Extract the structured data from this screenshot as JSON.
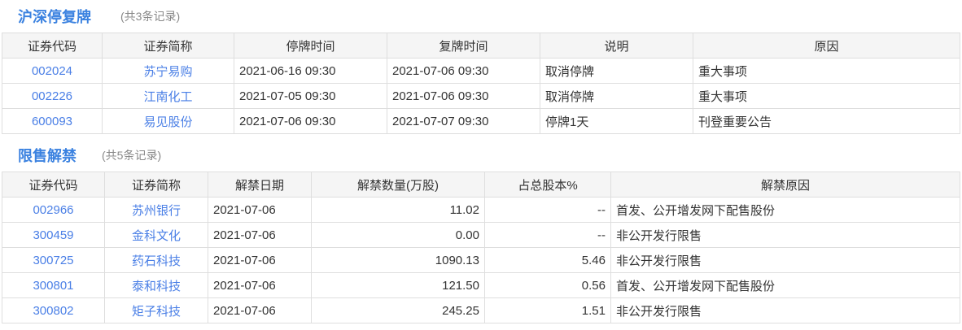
{
  "suspension": {
    "title": "沪深停复牌",
    "count": "(共3条记录)",
    "headers": [
      "证券代码",
      "证券简称",
      "停牌时间",
      "复牌时间",
      "说明",
      "原因"
    ],
    "rows": [
      {
        "code": "002024",
        "name": "苏宁易购",
        "halt": "2021-06-16 09:30",
        "resume": "2021-07-06 09:30",
        "note": "取消停牌",
        "reason": "重大事项"
      },
      {
        "code": "002226",
        "name": "江南化工",
        "halt": "2021-07-05 09:30",
        "resume": "2021-07-06 09:30",
        "note": "取消停牌",
        "reason": "重大事项"
      },
      {
        "code": "600093",
        "name": "易见股份",
        "halt": "2021-07-06 09:30",
        "resume": "2021-07-07 09:30",
        "note": "停牌1天",
        "reason": "刊登重要公告"
      }
    ]
  },
  "unlock": {
    "title": "限售解禁",
    "count": "(共5条记录)",
    "headers": [
      "证券代码",
      "证券简称",
      "解禁日期",
      "解禁数量(万股)",
      "占总股本%",
      "解禁原因"
    ],
    "rows": [
      {
        "code": "002966",
        "name": "苏州银行",
        "date": "2021-07-06",
        "qty": "11.02",
        "pct": "--",
        "reason": "首发、公开增发网下配售股份"
      },
      {
        "code": "300459",
        "name": "金科文化",
        "date": "2021-07-06",
        "qty": "0.00",
        "pct": "--",
        "reason": "非公开发行限售"
      },
      {
        "code": "300725",
        "name": "药石科技",
        "date": "2021-07-06",
        "qty": "1090.13",
        "pct": "5.46",
        "reason": "非公开发行限售"
      },
      {
        "code": "300801",
        "name": "泰和科技",
        "date": "2021-07-06",
        "qty": "121.50",
        "pct": "0.56",
        "reason": "首发、公开增发网下配售股份"
      },
      {
        "code": "300802",
        "name": "矩子科技",
        "date": "2021-07-06",
        "qty": "245.25",
        "pct": "1.51",
        "reason": "非公开发行限售"
      }
    ]
  },
  "colors": {
    "title": "#3b82e0",
    "link": "#4a7fe6",
    "header_bg": "#f5f5f5",
    "border": "#dedede"
  }
}
